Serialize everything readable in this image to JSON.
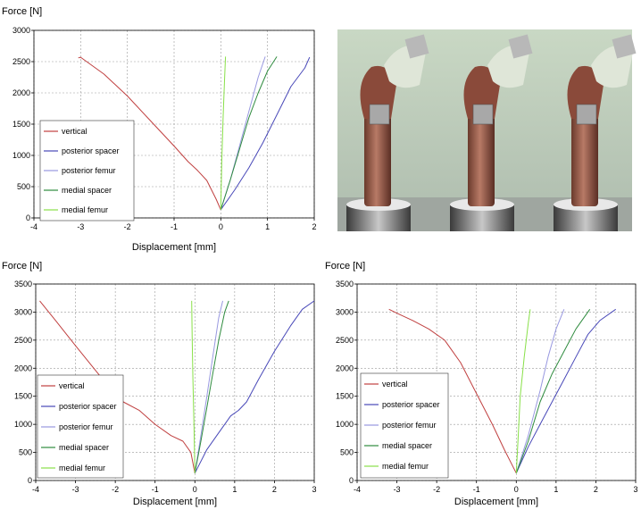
{
  "colors": {
    "vertical": "#c04040",
    "posterior_spacer": "#4848b8",
    "posterior_femur": "#9898e0",
    "medial_spacer": "#2e8b3e",
    "medial_femur": "#88e048",
    "grid": "#9a9a9a"
  },
  "photo": {
    "description_icon": "photo-icon"
  },
  "chart_data": [
    {
      "type": "line",
      "ylabel": "Force [N]",
      "xlabel": "Displacement [mm]",
      "xlim": [
        -4,
        2
      ],
      "ylim": [
        0,
        3000
      ],
      "xticks": [
        "-4",
        "-3",
        "-2",
        "-1",
        "0",
        "1",
        "2"
      ],
      "yticks": [
        "0",
        "500",
        "1000",
        "1500",
        "2000",
        "2500",
        "3000"
      ],
      "grid": true,
      "legend_position": "bottom-left",
      "series": [
        {
          "name": "vertical",
          "key": "vertical",
          "x": [
            0,
            -0.1,
            -0.3,
            -0.5,
            -0.7,
            -1.0,
            -1.5,
            -2.0,
            -2.5,
            -3.0,
            -3.05
          ],
          "y": [
            130,
            300,
            600,
            760,
            900,
            1150,
            1550,
            1950,
            2300,
            2570,
            2560
          ]
        },
        {
          "name": "posterior spacer",
          "key": "posterior_spacer",
          "x": [
            0,
            0.3,
            0.6,
            0.9,
            1.1,
            1.3,
            1.5,
            1.8,
            1.9
          ],
          "y": [
            130,
            450,
            800,
            1200,
            1500,
            1800,
            2100,
            2400,
            2570
          ]
        },
        {
          "name": "posterior femur",
          "key": "posterior_femur",
          "x": [
            0,
            0.2,
            0.4,
            0.6,
            0.8,
            0.95
          ],
          "y": [
            130,
            600,
            1150,
            1700,
            2250,
            2580
          ]
        },
        {
          "name": "medial spacer",
          "key": "medial_spacer",
          "x": [
            0,
            0.2,
            0.4,
            0.6,
            0.8,
            1.0,
            1.2
          ],
          "y": [
            130,
            600,
            1100,
            1600,
            2000,
            2350,
            2580
          ]
        },
        {
          "name": "medial femur",
          "key": "medial_femur",
          "x": [
            0,
            0.02,
            0.05,
            0.08,
            0.1
          ],
          "y": [
            130,
            900,
            1600,
            2200,
            2580
          ]
        }
      ]
    },
    {
      "type": "line",
      "ylabel": "Force [N]",
      "xlabel": "Displacement [mm]",
      "xlim": [
        -4,
        3
      ],
      "ylim": [
        0,
        3500
      ],
      "xticks": [
        "-4",
        "-3",
        "-2",
        "-1",
        "0",
        "1",
        "2",
        "3"
      ],
      "yticks": [
        "0",
        "500",
        "1000",
        "1500",
        "2000",
        "2500",
        "3000",
        "3500"
      ],
      "grid": true,
      "legend_position": "bottom-left",
      "series": [
        {
          "name": "vertical",
          "key": "vertical",
          "x": [
            0,
            -0.1,
            -0.3,
            -0.6,
            -1.0,
            -1.4,
            -1.8,
            -2.2,
            -2.6,
            -3.0,
            -3.5,
            -3.9
          ],
          "y": [
            130,
            500,
            700,
            800,
            1000,
            1250,
            1400,
            1700,
            2050,
            2400,
            2850,
            3200
          ]
        },
        {
          "name": "posterior spacer",
          "key": "posterior_spacer",
          "x": [
            0,
            0.3,
            0.6,
            0.9,
            1.1,
            1.3,
            1.6,
            2.0,
            2.4,
            2.7,
            3.0
          ],
          "y": [
            130,
            550,
            850,
            1150,
            1250,
            1400,
            1800,
            2300,
            2750,
            3050,
            3200
          ]
        },
        {
          "name": "posterior femur",
          "key": "posterior_femur",
          "x": [
            0,
            0.15,
            0.3,
            0.45,
            0.6,
            0.7
          ],
          "y": [
            130,
            800,
            1500,
            2200,
            2900,
            3200
          ]
        },
        {
          "name": "medial spacer",
          "key": "medial_spacer",
          "x": [
            0,
            0.15,
            0.3,
            0.45,
            0.6,
            0.75,
            0.85
          ],
          "y": [
            130,
            700,
            1300,
            1900,
            2500,
            3000,
            3200
          ]
        },
        {
          "name": "medial femur",
          "key": "medial_femur",
          "x": [
            0,
            -0.02,
            -0.05,
            -0.07,
            -0.08
          ],
          "y": [
            130,
            900,
            1800,
            2600,
            3200
          ]
        }
      ]
    },
    {
      "type": "line",
      "ylabel": "Force [N]",
      "xlabel": "Displacement [mm]",
      "xlim": [
        -4,
        3
      ],
      "ylim": [
        0,
        3500
      ],
      "xticks": [
        "-4",
        "-3",
        "-2",
        "-1",
        "0",
        "1",
        "2",
        "3"
      ],
      "yticks": [
        "0",
        "500",
        "1000",
        "1500",
        "2000",
        "2500",
        "3000",
        "3500"
      ],
      "grid": true,
      "legend_position": "bottom-left",
      "series": [
        {
          "name": "vertical",
          "key": "vertical",
          "x": [
            0,
            -0.3,
            -0.6,
            -1.0,
            -1.4,
            -1.8,
            -2.2,
            -2.6,
            -3.0,
            -3.2
          ],
          "y": [
            130,
            550,
            1000,
            1550,
            2100,
            2500,
            2700,
            2850,
            2980,
            3050
          ]
        },
        {
          "name": "posterior spacer",
          "key": "posterior_spacer",
          "x": [
            0,
            0.3,
            0.6,
            0.9,
            1.2,
            1.5,
            1.8,
            2.1,
            2.5
          ],
          "y": [
            130,
            600,
            1000,
            1400,
            1800,
            2200,
            2600,
            2850,
            3050
          ]
        },
        {
          "name": "posterior femur",
          "key": "posterior_femur",
          "x": [
            0,
            0.3,
            0.6,
            0.8,
            1.0,
            1.2
          ],
          "y": [
            130,
            800,
            1600,
            2200,
            2700,
            3050
          ]
        },
        {
          "name": "medial spacer",
          "key": "medial_spacer",
          "x": [
            0,
            0.3,
            0.6,
            0.9,
            1.2,
            1.5,
            1.85
          ],
          "y": [
            130,
            700,
            1400,
            1900,
            2300,
            2700,
            3050
          ]
        },
        {
          "name": "medial femur",
          "key": "medial_femur",
          "x": [
            0,
            0.05,
            0.1,
            0.2,
            0.3,
            0.35
          ],
          "y": [
            130,
            800,
            1500,
            2200,
            2800,
            3050
          ]
        }
      ]
    }
  ]
}
